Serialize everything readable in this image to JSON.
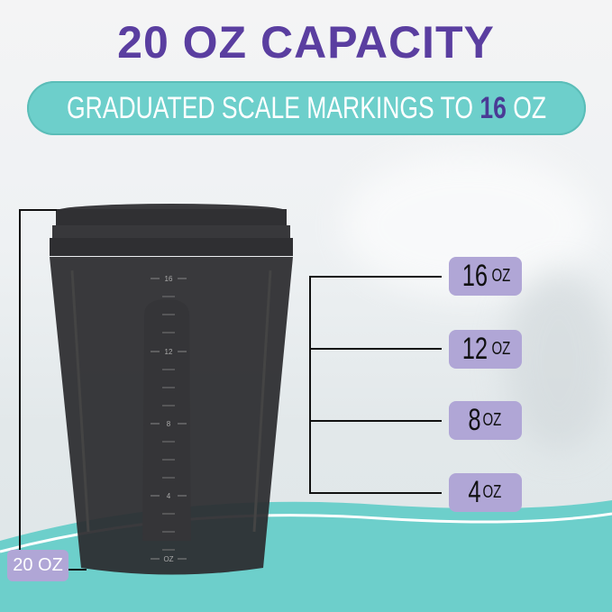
{
  "headline": "20 OZ CAPACITY",
  "subheadline": {
    "text": "GRADUATED SCALE MARKINGS TO ",
    "highlight": "16",
    "unit": " OZ"
  },
  "scale_labels": [
    {
      "value": "16",
      "unit": "OZ"
    },
    {
      "value": "12",
      "unit": "OZ"
    },
    {
      "value": "8",
      "unit": "OZ"
    },
    {
      "value": "4",
      "unit": "OZ"
    }
  ],
  "cup_markings": [
    "16",
    "12",
    "8",
    "4",
    "OZ"
  ],
  "capacity_label": "20 OZ",
  "colors": {
    "headline": "#5a3ea0",
    "pill": "#6dcfcb",
    "tag": "#b0a6d6",
    "teal_base": "#6dcfcb",
    "cup": "#2b2b2e"
  }
}
